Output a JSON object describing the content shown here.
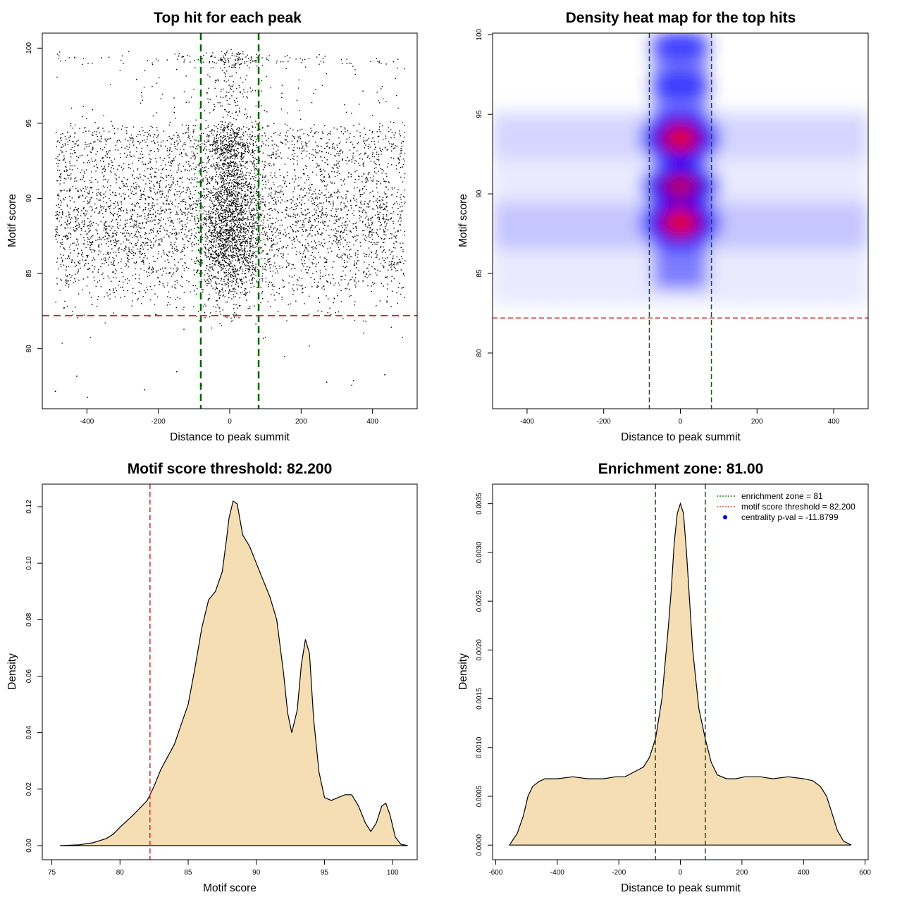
{
  "colors": {
    "threshold_line": "#d62728",
    "zone_line": "#006400",
    "density_fill": "#f5deb3",
    "heat_low": "#ffffff",
    "heat_mid": "#0000ff",
    "heat_high": "#ff0000",
    "points": "#000000"
  },
  "chart_data": [
    {
      "id": "scatter",
      "type": "scatter",
      "title": "Top hit for each peak",
      "xlabel": "Distance to peak summit",
      "ylabel": "Motif score",
      "xlim": [
        -525,
        525
      ],
      "ylim": [
        76,
        101
      ],
      "xticks": [
        "-400",
        "-200",
        "0",
        "200",
        "400"
      ],
      "xtick_values": [
        -400,
        -200,
        0,
        200,
        400
      ],
      "yticks": [
        "80",
        "85",
        "90",
        "95",
        "100"
      ],
      "ytick_values": [
        80,
        85,
        90,
        95,
        100
      ],
      "vlines": [
        -81,
        81
      ],
      "hline": 82.2,
      "grid": false,
      "points_described": "Dense black point cloud; x spread uniformly across -500..500 with strong concentration within about ±80 of 0; y mostly between 83 and 95.",
      "outlier_points": [
        {
          "x": -490,
          "y": 77.2
        },
        {
          "x": -400,
          "y": 76.8
        },
        {
          "x": -240,
          "y": 77.3
        },
        {
          "x": -80,
          "y": 77.6
        },
        {
          "x": 270,
          "y": 77.8
        },
        {
          "x": 340,
          "y": 77.6
        },
        {
          "x": 345,
          "y": 77.9
        },
        {
          "x": 433,
          "y": 78.3
        },
        {
          "x": -430,
          "y": 78.2
        },
        {
          "x": -150,
          "y": 78.5
        }
      ]
    },
    {
      "id": "heatmap",
      "type": "heatmap",
      "title": "Density heat map for the top hits",
      "xlabel": "Distance to peak summit",
      "ylabel": "Motif score",
      "xlim": [
        -490,
        490
      ],
      "ylim": [
        76.5,
        100.1
      ],
      "xticks": [
        "-400",
        "-200",
        "0",
        "200",
        "400"
      ],
      "xtick_values": [
        -400,
        -200,
        0,
        200,
        400
      ],
      "yticks": [
        "80",
        "85",
        "90",
        "95",
        "100"
      ],
      "ytick_values": [
        80,
        85,
        90,
        95,
        100
      ],
      "vlines": [
        -81,
        81
      ],
      "hline": 82.2,
      "hotspots": [
        {
          "x": 0,
          "y": 88.2,
          "intensity": 1.0
        },
        {
          "x": 0,
          "y": 93.5,
          "intensity": 0.95
        },
        {
          "x": 0,
          "y": 90.5,
          "intensity": 0.75
        },
        {
          "x": 0,
          "y": 96.8,
          "intensity": 0.45
        },
        {
          "x": 0,
          "y": 99.3,
          "intensity": 0.4
        }
      ],
      "horizontal_bands": [
        {
          "y": 88,
          "intensity": 0.35
        },
        {
          "y": 93.7,
          "intensity": 0.2
        }
      ]
    },
    {
      "id": "score-density",
      "type": "area",
      "title": "Motif score threshold: 82.200",
      "xlabel": "Motif score",
      "ylabel": "Density",
      "xlim": [
        74.3,
        101.8
      ],
      "ylim": [
        -0.005,
        0.128
      ],
      "xticks": [
        "75",
        "80",
        "85",
        "90",
        "95",
        "100"
      ],
      "xtick_values": [
        75,
        80,
        85,
        90,
        95,
        100
      ],
      "yticks": [
        "0.00",
        "0.02",
        "0.04",
        "0.06",
        "0.08",
        "0.10",
        "0.12"
      ],
      "ytick_values": [
        0,
        0.02,
        0.04,
        0.06,
        0.08,
        0.1,
        0.12
      ],
      "vlines": [
        82.2
      ],
      "x": [
        75.6,
        77,
        78,
        79,
        79.5,
        80,
        81,
        82,
        82.5,
        83,
        84,
        84.5,
        85,
        85.5,
        86,
        86.5,
        87,
        87.5,
        87.8,
        88,
        88.3,
        88.6,
        89,
        89.5,
        90,
        90.5,
        91,
        91.5,
        92,
        92.3,
        92.6,
        93,
        93.3,
        93.6,
        93.9,
        94.2,
        94.6,
        95,
        95.5,
        96,
        96.5,
        97,
        97.5,
        98,
        98.4,
        98.8,
        99.2,
        99.5,
        99.8,
        100.2,
        100.6,
        101.1
      ],
      "y": [
        0,
        0.0003,
        0.001,
        0.0025,
        0.004,
        0.0065,
        0.011,
        0.016,
        0.021,
        0.027,
        0.036,
        0.043,
        0.05,
        0.063,
        0.077,
        0.087,
        0.09,
        0.097,
        0.108,
        0.116,
        0.122,
        0.121,
        0.11,
        0.106,
        0.1,
        0.094,
        0.088,
        0.08,
        0.061,
        0.047,
        0.04,
        0.048,
        0.064,
        0.073,
        0.068,
        0.045,
        0.026,
        0.017,
        0.016,
        0.017,
        0.018,
        0.018,
        0.014,
        0.008,
        0.005,
        0.008,
        0.014,
        0.015,
        0.011,
        0.003,
        0.0005,
        0
      ]
    },
    {
      "id": "distance-density",
      "type": "area",
      "title": "Enrichment zone: 81.00",
      "xlabel": "Distance to peak summit",
      "ylabel": "Density",
      "xlim": [
        -610,
        610
      ],
      "ylim": [
        -0.00015,
        0.0037
      ],
      "xticks": [
        "-600",
        "-400",
        "-200",
        "0",
        "200",
        "400",
        "600"
      ],
      "xtick_values": [
        -600,
        -400,
        -200,
        0,
        200,
        400,
        600
      ],
      "yticks": [
        "0.0000",
        "0.0005",
        "0.0010",
        "0.0015",
        "0.0020",
        "0.0025",
        "0.0030",
        "0.0035"
      ],
      "ytick_values": [
        0,
        0.0005,
        0.001,
        0.0015,
        0.002,
        0.0025,
        0.003,
        0.0035
      ],
      "vlines": [
        -81,
        81
      ],
      "x": [
        -555,
        -530,
        -510,
        -495,
        -480,
        -460,
        -440,
        -400,
        -350,
        -300,
        -250,
        -210,
        -180,
        -150,
        -120,
        -100,
        -80,
        -60,
        -40,
        -30,
        -20,
        -10,
        0,
        10,
        20,
        30,
        40,
        60,
        80,
        100,
        120,
        150,
        180,
        210,
        260,
        300,
        350,
        400,
        430,
        455,
        475,
        495,
        510,
        530,
        555
      ],
      "y": [
        0,
        0.00012,
        0.0003,
        0.0005,
        0.0006,
        0.00065,
        0.00068,
        0.00068,
        0.0007,
        0.00068,
        0.00068,
        0.0007,
        0.0007,
        0.00075,
        0.0008,
        0.0009,
        0.0011,
        0.0015,
        0.0022,
        0.0026,
        0.0031,
        0.0034,
        0.0035,
        0.0034,
        0.003,
        0.0025,
        0.002,
        0.0014,
        0.0011,
        0.00085,
        0.00072,
        0.00068,
        0.00068,
        0.0007,
        0.0007,
        0.00068,
        0.0007,
        0.00068,
        0.00066,
        0.0006,
        0.0005,
        0.0003,
        0.00015,
        4e-05,
        0
      ],
      "legend": {
        "position": "top-right",
        "items": [
          {
            "label": "enrichment zone = 81",
            "style": "dotted",
            "color": "#006400"
          },
          {
            "label": "motif score threshold = 82.200",
            "style": "dotted",
            "color": "#d62728"
          },
          {
            "label": "centrality p-val = -11.8799",
            "style": "dot",
            "color": "#0000ff"
          }
        ]
      }
    }
  ]
}
